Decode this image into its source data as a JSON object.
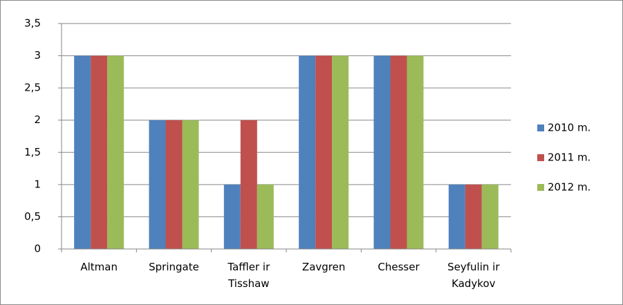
{
  "chart_data": {
    "type": "bar",
    "categories": [
      "Altman",
      "Springate",
      "Taffler ir Tisshaw",
      "Zavgren",
      "Chesser",
      "Seyfulin ir Kadykov"
    ],
    "series": [
      {
        "name": "2010 m.",
        "color": "#4f81bd",
        "values": [
          3,
          2,
          1,
          3,
          3,
          1
        ]
      },
      {
        "name": "2011 m.",
        "color": "#c0504d",
        "values": [
          3,
          2,
          2,
          3,
          3,
          1
        ]
      },
      {
        "name": "2012 m.",
        "color": "#9bbb59",
        "values": [
          3,
          2,
          1,
          3,
          3,
          1
        ]
      }
    ],
    "ylim": [
      0,
      3.5
    ],
    "yticks": [
      0,
      {
        "value": 0.5,
        "label": "0,5"
      },
      1,
      {
        "value": 1.5,
        "label": "1,5"
      },
      2,
      {
        "value": 2.5,
        "label": "2,5"
      },
      3,
      {
        "value": 3.5,
        "label": "3,5"
      }
    ],
    "grid": true,
    "legend": "right"
  }
}
